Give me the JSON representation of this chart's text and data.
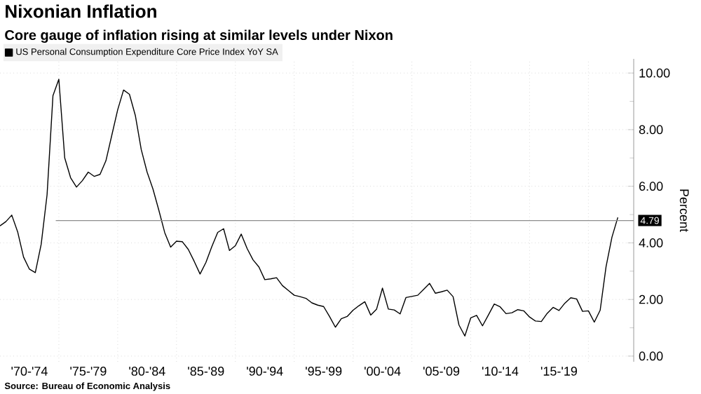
{
  "chart_data": {
    "type": "line",
    "title": "Nixonian Inflation",
    "subtitle": "Core gauge of inflation rising at similar levels under Nixon",
    "ylabel": "Percent",
    "annotations": [
      "Source: Bureau of Economic Analysis"
    ],
    "categories": [
      null,
      null,
      null,
      null,
      null,
      "'70-'74",
      null,
      null,
      null,
      null,
      null,
      null,
      null,
      null,
      null,
      "'75-'79",
      null,
      null,
      null,
      null,
      null,
      null,
      null,
      null,
      null,
      "'80-'84",
      null,
      null,
      null,
      null,
      null,
      null,
      null,
      null,
      null,
      "'85-'89",
      null,
      null,
      null,
      null,
      null,
      null,
      null,
      null,
      null,
      "'90-'94",
      null,
      null,
      null,
      null,
      null,
      null,
      null,
      null,
      null,
      "'95-'99",
      null,
      null,
      null,
      null,
      null,
      null,
      null,
      null,
      null,
      "'00-'04",
      null,
      null,
      null,
      null,
      null,
      null,
      null,
      null,
      null,
      "'05-'09",
      null,
      null,
      null,
      null,
      null,
      null,
      null,
      null,
      null,
      "'10-'14",
      null,
      null,
      null,
      null,
      null,
      null,
      null,
      null,
      null,
      "'15-'19",
      null,
      null,
      null,
      null,
      null,
      null,
      null,
      null,
      null,
      null
    ],
    "series": [
      {
        "name": "US Personal Consumption Expenditure Core Price Index YoY SA",
        "color": "#000000",
        "values": [
          4.6,
          4.75,
          4.98,
          4.39,
          3.5,
          3.07,
          2.95,
          3.95,
          5.7,
          9.2,
          9.78,
          7.0,
          6.3,
          5.97,
          6.2,
          6.5,
          6.35,
          6.42,
          6.9,
          7.8,
          8.7,
          9.4,
          9.25,
          8.5,
          7.3,
          6.5,
          5.9,
          5.15,
          4.36,
          3.85,
          4.06,
          4.04,
          3.77,
          3.35,
          2.9,
          3.31,
          3.87,
          4.37,
          4.5,
          3.73,
          3.9,
          4.31,
          3.8,
          3.4,
          3.15,
          2.7,
          2.73,
          2.77,
          2.49,
          2.32,
          2.15,
          2.1,
          2.04,
          1.88,
          1.8,
          1.75,
          1.4,
          1.02,
          1.32,
          1.4,
          1.62,
          1.78,
          1.92,
          1.45,
          1.66,
          2.4,
          1.66,
          1.63,
          1.49,
          2.07,
          2.11,
          2.15,
          2.36,
          2.57,
          2.22,
          2.27,
          2.33,
          2.1,
          1.1,
          0.71,
          1.35,
          1.44,
          1.07,
          1.45,
          1.84,
          1.74,
          1.5,
          1.53,
          1.64,
          1.6,
          1.38,
          1.24,
          1.22,
          1.51,
          1.72,
          1.61,
          1.87,
          2.06,
          2.02,
          1.58,
          1.6,
          1.2,
          1.62,
          3.16,
          4.2,
          4.9
        ]
      }
    ],
    "ylim": [
      -0.2,
      10.5
    ],
    "yticks": [
      {
        "value": 0,
        "label": "0.00"
      },
      {
        "value": 2,
        "label": "2.00"
      },
      {
        "value": 4,
        "label": "4.00"
      },
      {
        "value": 6,
        "label": "6.00"
      },
      {
        "value": 8,
        "label": "8.00"
      },
      {
        "value": 10,
        "label": "10.00"
      },
      {
        "value": 1,
        "label": null
      },
      {
        "value": 3,
        "label": null
      },
      {
        "value": 5,
        "label": null
      },
      {
        "value": 7,
        "label": null
      },
      {
        "value": 9,
        "label": null
      }
    ],
    "ref_lines": [
      {
        "axis": "y",
        "value": 4.79,
        "label": "4.79",
        "color": "#8c8c8c"
      }
    ],
    "grid": true,
    "legend": "top left",
    "marker": "none",
    "line_style": "solid"
  }
}
